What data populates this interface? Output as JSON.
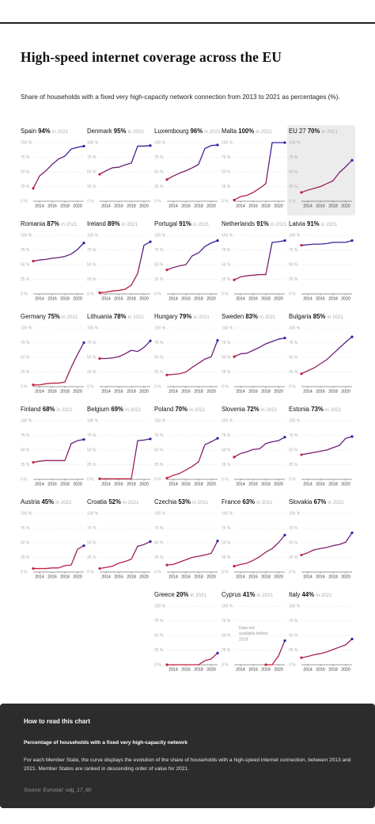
{
  "page": {
    "title": "High-speed internet coverage across the EU",
    "subtitle": "Share of households with a fixed very high-capacity network connection from 2013 to 2021 as percentages (%)."
  },
  "colors": {
    "line_start": "#c8203c",
    "line_end": "#2b1ea8",
    "highlight_bg": "#ececec",
    "grid": "#d9d9d9",
    "axis": "#333333",
    "footer_bg": "#2c2c2c"
  },
  "chart_data": {
    "type": "line",
    "layout": "small-multiples",
    "x": [
      2013,
      2014,
      2015,
      2016,
      2017,
      2018,
      2019,
      2020,
      2021
    ],
    "x_tick_labels": [
      "2014",
      "2016",
      "2018",
      "2020"
    ],
    "y_tick_labels": [
      "100 %",
      "75 %",
      "50 %",
      "25 %",
      "0 %"
    ],
    "ylim": [
      0,
      100
    ],
    "year_label": "in 2021",
    "grid": true,
    "panels": [
      {
        "country": "Spain",
        "value_label": "94%",
        "values": [
          22,
          43,
          52,
          63,
          72,
          77,
          89,
          92,
          94
        ]
      },
      {
        "country": "Denmark",
        "value_label": "95%",
        "values": [
          46,
          52,
          57,
          58,
          62,
          65,
          94,
          94,
          95
        ]
      },
      {
        "country": "Luxembourg",
        "value_label": "96%",
        "values": [
          37,
          43,
          48,
          52,
          57,
          63,
          90,
          95,
          96
        ]
      },
      {
        "country": "Malta",
        "value_label": "100%",
        "values": [
          2,
          8,
          10,
          15,
          22,
          30,
          100,
          100,
          100
        ]
      },
      {
        "country": "EU 27",
        "value_label": "70%",
        "values": [
          15,
          19,
          22,
          25,
          30,
          35,
          49,
          59,
          70
        ],
        "highlight": true
      },
      {
        "country": "Romania",
        "value_label": "87%",
        "values": [
          56,
          58,
          59,
          61,
          62,
          64,
          68,
          76,
          87
        ]
      },
      {
        "country": "Ireland",
        "value_label": "89%",
        "values": [
          2,
          3,
          5,
          6,
          8,
          15,
          35,
          83,
          89
        ]
      },
      {
        "country": "Portugal",
        "value_label": "91%",
        "values": [
          41,
          45,
          48,
          50,
          65,
          70,
          81,
          87,
          91
        ]
      },
      {
        "country": "Netherlands",
        "value_label": "91%",
        "values": [
          24,
          29,
          31,
          32,
          33,
          33,
          88,
          89,
          91
        ]
      },
      {
        "country": "Latvia",
        "value_label": "91%",
        "values": [
          83,
          84,
          85,
          85,
          86,
          88,
          88,
          88,
          91
        ]
      },
      {
        "country": "Germany",
        "value_label": "75%",
        "values": [
          3,
          3,
          5,
          6,
          6,
          8,
          33,
          55,
          75
        ]
      },
      {
        "country": "Lithuania",
        "value_label": "78%",
        "values": [
          48,
          48,
          49,
          51,
          56,
          62,
          60,
          67,
          78
        ]
      },
      {
        "country": "Hungary",
        "value_label": "79%",
        "values": [
          20,
          21,
          22,
          25,
          33,
          40,
          47,
          51,
          79
        ]
      },
      {
        "country": "Sweden",
        "value_label": "83%",
        "values": [
          51,
          56,
          57,
          62,
          67,
          73,
          77,
          81,
          83
        ]
      },
      {
        "country": "Bulgaria",
        "value_label": "85%",
        "values": [
          22,
          27,
          32,
          39,
          46,
          56,
          66,
          76,
          85
        ]
      },
      {
        "country": "Finland",
        "value_label": "68%",
        "values": [
          29,
          31,
          32,
          32,
          32,
          32,
          61,
          66,
          68
        ]
      },
      {
        "country": "Belgium",
        "value_label": "69%",
        "values": [
          1,
          1,
          1,
          1,
          1,
          1,
          66,
          67,
          69
        ]
      },
      {
        "country": "Poland",
        "value_label": "70%",
        "values": [
          2,
          7,
          10,
          16,
          22,
          30,
          59,
          64,
          70
        ]
      },
      {
        "country": "Slovenia",
        "value_label": "72%",
        "values": [
          38,
          44,
          47,
          51,
          52,
          61,
          64,
          66,
          72
        ]
      },
      {
        "country": "Estonia",
        "value_label": "73%",
        "values": [
          42,
          44,
          46,
          48,
          50,
          54,
          58,
          70,
          73
        ]
      },
      {
        "country": "Austria",
        "value_label": "45%",
        "values": [
          6,
          6,
          6,
          7,
          7,
          11,
          12,
          39,
          45
        ]
      },
      {
        "country": "Croatia",
        "value_label": "52%",
        "values": [
          6,
          8,
          10,
          15,
          18,
          22,
          44,
          47,
          52
        ]
      },
      {
        "country": "Czechia",
        "value_label": "53%",
        "values": [
          12,
          13,
          17,
          21,
          25,
          27,
          29,
          32,
          53
        ]
      },
      {
        "country": "France",
        "value_label": "63%",
        "values": [
          10,
          13,
          15,
          20,
          26,
          34,
          40,
          50,
          63
        ]
      },
      {
        "country": "Slovakia",
        "value_label": "67%",
        "values": [
          29,
          33,
          38,
          40,
          42,
          45,
          47,
          51,
          67
        ]
      },
      {
        "country": "Greece",
        "value_label": "20%",
        "values": [
          0,
          0,
          0,
          0,
          0,
          0,
          7,
          10,
          20
        ]
      },
      {
        "country": "Cyprus",
        "value_label": "41%",
        "values": [
          null,
          null,
          null,
          null,
          null,
          0,
          0,
          15,
          41
        ],
        "note": "Data not available before 2018"
      },
      {
        "country": "Italy",
        "value_label": "44%",
        "values": [
          12,
          14,
          17,
          19,
          22,
          26,
          30,
          34,
          44
        ]
      }
    ]
  },
  "footer": {
    "heading": "How to read this chart",
    "subheading": "Percentage of households with a fixed very high-capacity network",
    "body": "For each Member State, the curve displays the evolution of the share of households with a high-speed internet connection, between 2013 and 2021. Member States are ranked in descending order of value for 2021.",
    "source": "Source: Eurostat: sdg_17_60"
  }
}
